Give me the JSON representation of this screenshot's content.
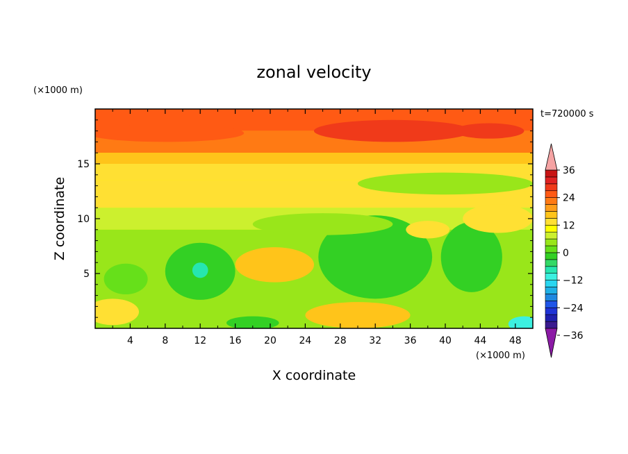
{
  "chart_data": {
    "type": "heatmap",
    "title": "zonal velocity",
    "xlabel": "X coordinate",
    "ylabel": "Z coordinate",
    "x_unit": "(×1000 m)",
    "y_unit": "(×1000 m)",
    "time_label": "t=720000 s",
    "xlim": [
      0,
      50
    ],
    "ylim": [
      0,
      20
    ],
    "x_ticks": [
      "4",
      "8",
      "12",
      "16",
      "20",
      "24",
      "28",
      "32",
      "36",
      "40",
      "44",
      "48"
    ],
    "y_ticks": [
      "5",
      "10",
      "15"
    ],
    "colorbar": {
      "levels": [
        -42,
        -39,
        -36,
        -33,
        -30,
        -27,
        -24,
        -21,
        -18,
        -15,
        -12,
        -9,
        -6,
        -3,
        0,
        3,
        6,
        9,
        12,
        15,
        18,
        21,
        24,
        27,
        30,
        33,
        36,
        39,
        42
      ],
      "tick_labels": [
        "36",
        "24",
        "12",
        "0",
        "−12",
        "−24",
        "−36"
      ],
      "tick_values": [
        36,
        24,
        12,
        0,
        -12,
        -24,
        -36
      ],
      "extend": "both"
    },
    "field": {
      "background": 1,
      "bands": [
        {
          "z": [
            18,
            20
          ],
          "value": 16
        },
        {
          "z": [
            16,
            18
          ],
          "value": 14
        },
        {
          "z": [
            15,
            16
          ],
          "value": 7
        },
        {
          "z": [
            13.5,
            15
          ],
          "value": 3
        },
        {
          "z": [
            11,
            13.5
          ],
          "value": 5
        },
        {
          "z": [
            9,
            11
          ],
          "value": -3
        },
        {
          "z": [
            0,
            9
          ],
          "value": -4
        }
      ],
      "blobs": [
        {
          "x": 12,
          "z": 5.2,
          "rx": 4,
          "rz": 2.6,
          "value": -10
        },
        {
          "x": 12,
          "z": 5.3,
          "rx": 0.9,
          "rz": 0.7,
          "value": -18
        },
        {
          "x": 32,
          "z": 6.5,
          "rx": 6.5,
          "rz": 3.8,
          "value": -10
        },
        {
          "x": 43,
          "z": 6.5,
          "rx": 3.5,
          "rz": 3.2,
          "value": -10
        },
        {
          "x": 40,
          "z": 13.2,
          "rx": 10,
          "rz": 1.0,
          "value": -6
        },
        {
          "x": 20.5,
          "z": 5.8,
          "rx": 4.5,
          "rz": 1.6,
          "value": 6
        },
        {
          "x": 30,
          "z": 1.2,
          "rx": 6,
          "rz": 1.2,
          "value": 6
        },
        {
          "x": 18,
          "z": 0.5,
          "rx": 3,
          "rz": 0.6,
          "value": -10
        },
        {
          "x": 49,
          "z": 0.4,
          "rx": 1.8,
          "rz": 0.7,
          "value": -20
        },
        {
          "x": 2,
          "z": 1.5,
          "rx": 3,
          "rz": 1.2,
          "value": 5
        },
        {
          "x": 3.5,
          "z": 4.5,
          "rx": 2.5,
          "rz": 1.4,
          "value": -8
        },
        {
          "x": 45,
          "z": 18,
          "rx": 4,
          "rz": 0.7,
          "value": 20
        },
        {
          "x": 34,
          "z": 18,
          "rx": 9,
          "rz": 1.0,
          "value": 18
        },
        {
          "x": 8,
          "z": 17.8,
          "rx": 9,
          "rz": 0.8,
          "value": 17
        },
        {
          "x": 46,
          "z": 10,
          "rx": 4,
          "rz": 1.3,
          "value": 4
        },
        {
          "x": 26,
          "z": 9.5,
          "rx": 8,
          "rz": 1.0,
          "value": -6
        },
        {
          "x": 38,
          "z": 9,
          "rx": 2.5,
          "rz": 0.8,
          "value": 4
        }
      ]
    }
  },
  "colors": {
    "below": "#8b1aa5",
    "above": "#f5a3a3",
    "scale": [
      "#3a1a8f",
      "#1f1fae",
      "#1f33d6",
      "#1f55e8",
      "#1f88e0",
      "#1fb0e6",
      "#29d6f0",
      "#3cf0e0",
      "#26e6b0",
      "#33d966",
      "#33d024",
      "#66e01a",
      "#99e61a",
      "#ccf02e",
      "#ffff00",
      "#ffe033",
      "#ffc41a",
      "#ff9e1a",
      "#ff7a14",
      "#ff5a14",
      "#f03a1a",
      "#e02222",
      "#c81414"
    ]
  }
}
